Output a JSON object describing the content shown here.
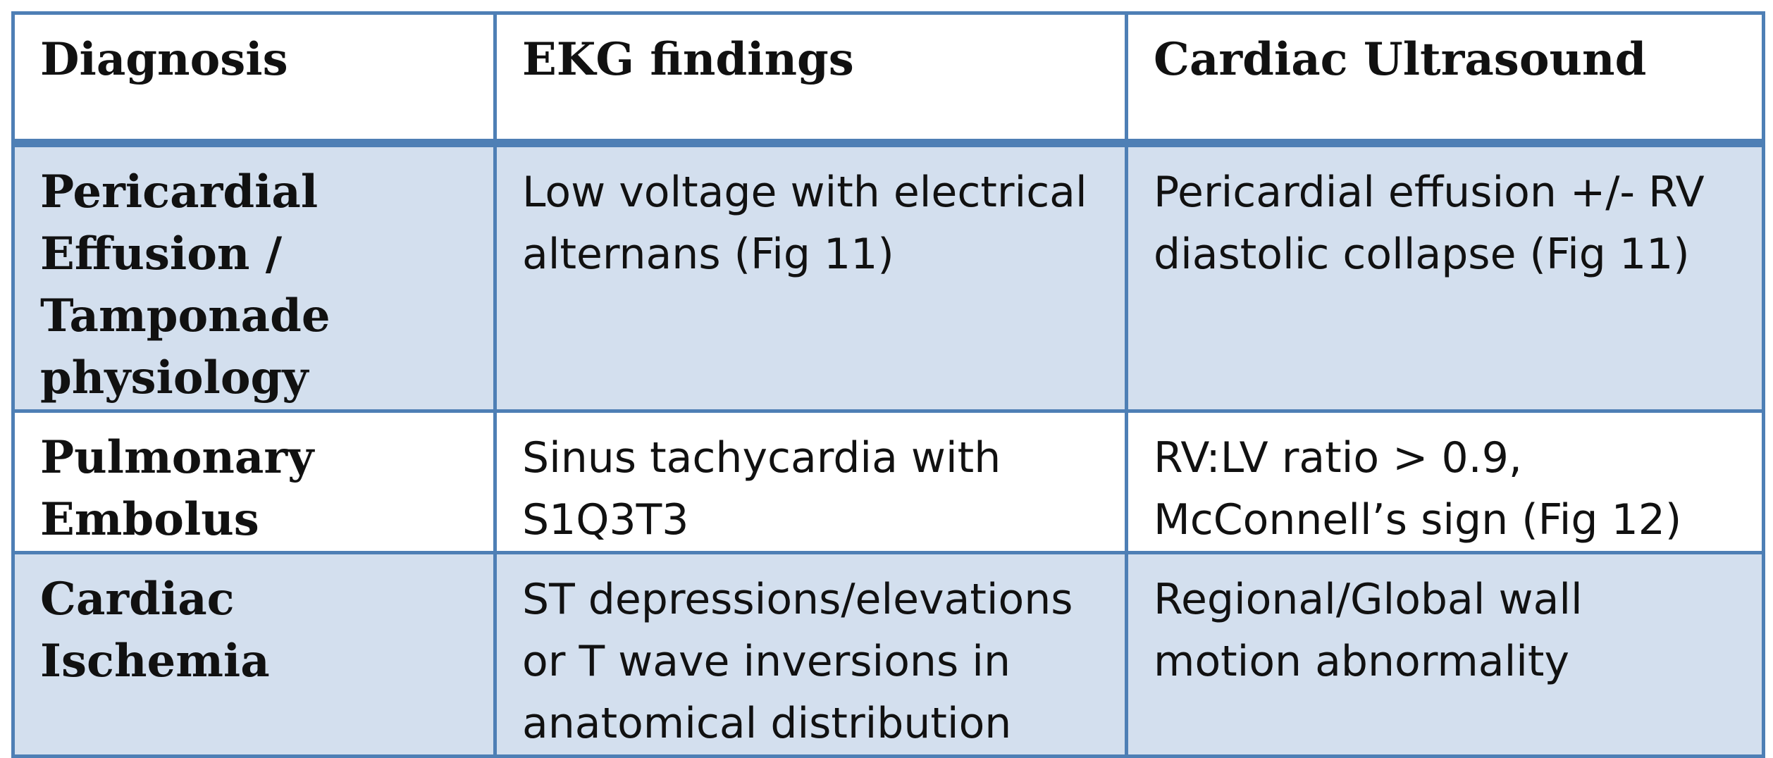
{
  "table": {
    "headers": [
      "Diagnosis",
      "EKG findings",
      "Cardiac Ultrasound"
    ],
    "rows": [
      {
        "diagnosis": "Pericardial\nEffusion /\nTamponade\nphysiology",
        "ekg": "Low voltage with electrical\nalternans (Fig 11)",
        "ultrasound": "Pericardial effusion +/- RV\ndiastolic collapse (Fig 11)"
      },
      {
        "diagnosis": "Pulmonary\nEmbolus",
        "ekg": "Sinus tachycardia with\nS1Q3T3",
        "ultrasound": "RV:LV ratio > 0.9,\nMcConnell’s sign (Fig 12)"
      },
      {
        "diagnosis": "Cardiac Ischemia",
        "ekg": "ST depressions/elevations\nor T wave inversions in\nanatomical distribution",
        "ultrasound": "Regional/Global wall\nmotion abnormality"
      }
    ]
  },
  "colors": {
    "border": "#4e7fb5",
    "shaded_row": "#d3dfee",
    "plain_row": "#ffffff"
  }
}
